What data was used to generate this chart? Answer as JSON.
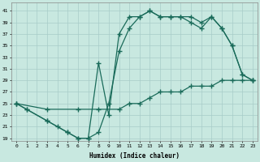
{
  "xlabel": "Humidex (Indice chaleur)",
  "bg_color": "#c8e8e0",
  "line_color": "#1a6b5a",
  "grid_color": "#a8ccc8",
  "xlim": [
    -0.5,
    23.5
  ],
  "ylim": [
    18.5,
    42.5
  ],
  "xticks": [
    0,
    1,
    2,
    3,
    4,
    5,
    6,
    7,
    8,
    9,
    10,
    11,
    12,
    13,
    14,
    15,
    16,
    17,
    18,
    19,
    20,
    21,
    22,
    23
  ],
  "yticks": [
    19,
    21,
    23,
    25,
    27,
    29,
    31,
    33,
    35,
    37,
    39,
    41
  ],
  "line1_x": [
    0,
    1,
    3,
    4,
    5,
    6,
    7,
    8,
    9,
    10,
    11,
    12,
    13,
    14,
    15,
    16,
    17,
    18,
    19,
    20,
    21,
    22,
    23
  ],
  "line1_y": [
    25,
    24,
    22,
    21,
    20,
    19,
    19,
    20,
    25,
    34,
    38,
    40,
    41,
    40,
    40,
    40,
    40,
    39,
    40,
    38,
    35,
    30,
    29
  ],
  "line2_x": [
    0,
    1,
    3,
    5,
    6,
    7,
    8,
    9,
    10,
    11,
    12,
    13,
    14,
    15,
    16,
    17,
    18,
    19,
    20,
    21,
    22,
    23
  ],
  "line2_y": [
    25,
    24,
    22,
    20,
    19,
    19,
    32,
    23,
    37,
    40,
    40,
    41,
    40,
    40,
    40,
    39,
    38,
    40,
    38,
    35,
    30,
    29
  ],
  "line3_x": [
    0,
    3,
    6,
    8,
    10,
    11,
    12,
    13,
    14,
    15,
    16,
    17,
    18,
    19,
    20,
    21,
    22,
    23
  ],
  "line3_y": [
    25,
    24,
    24,
    24,
    24,
    25,
    25,
    26,
    27,
    27,
    27,
    28,
    28,
    28,
    29,
    29,
    29,
    29
  ]
}
